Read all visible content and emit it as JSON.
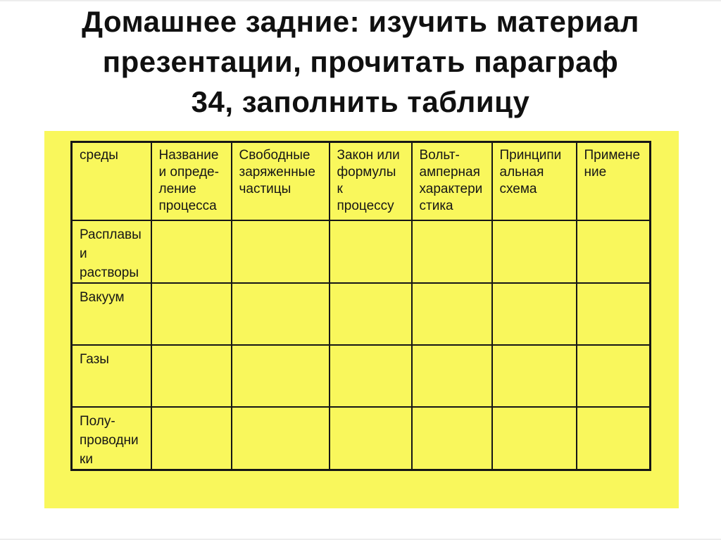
{
  "slide": {
    "title": "Домашнее задние: изучить материал\nпрезентации, прочитать параграф\n34, заполнить таблицу"
  },
  "colors": {
    "panel_yellow": "#f9f75c",
    "table_border": "#161616",
    "title_text": "#101010",
    "page_background": "#ffffff"
  },
  "table": {
    "headers": [
      "среды",
      "Название\nи опреде-\nление\nпроцесса",
      "Свободные\nзаряженные\nчастицы",
      "Закон или\nформулы\nк\nпроцессу",
      "Вольт-\nамперная\nхарактери\nстика",
      "Принципи\nальная\nсхема",
      "Примене\nние"
    ],
    "rows": [
      {
        "label": "Расплавы\nи\nрастворы",
        "cells": [
          "",
          "",
          "",
          "",
          "",
          ""
        ]
      },
      {
        "label": "Вакуум",
        "cells": [
          "",
          "",
          "",
          "",
          "",
          ""
        ]
      },
      {
        "label": "Газы",
        "cells": [
          "",
          "",
          "",
          "",
          "",
          ""
        ]
      },
      {
        "label": "Полу-\nпроводни\nки",
        "cells": [
          "",
          "",
          "",
          "",
          "",
          ""
        ]
      }
    ]
  }
}
